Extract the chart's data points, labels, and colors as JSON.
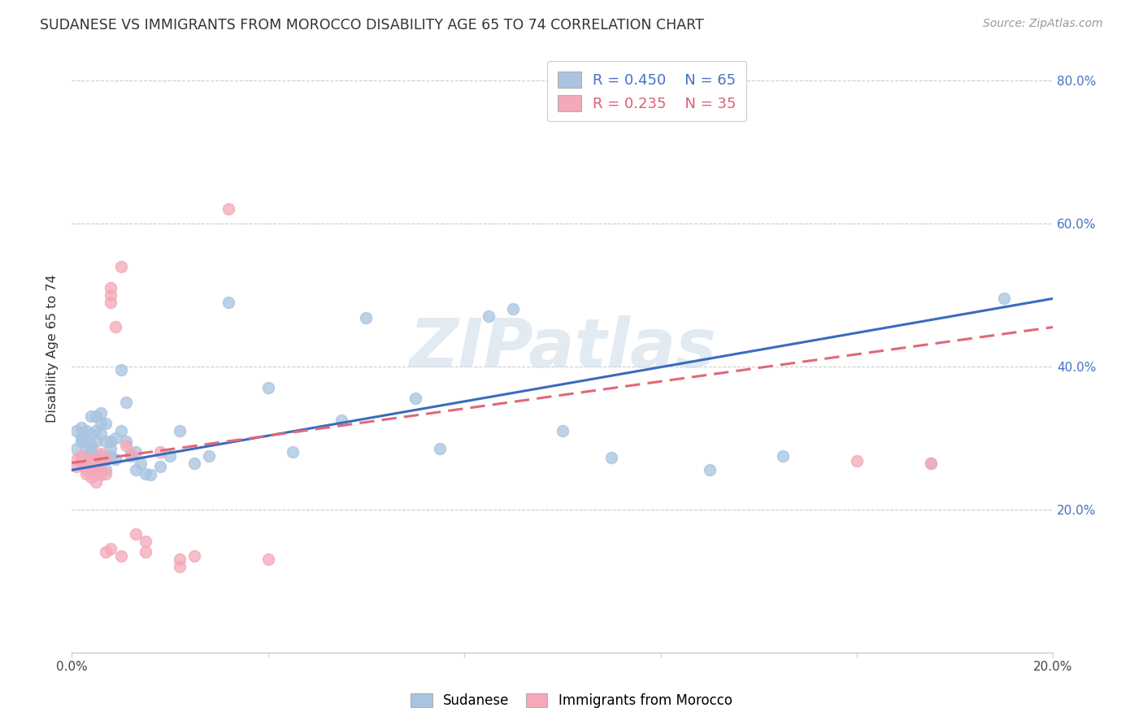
{
  "title": "SUDANESE VS IMMIGRANTS FROM MOROCCO DISABILITY AGE 65 TO 74 CORRELATION CHART",
  "source": "Source: ZipAtlas.com",
  "ylabel": "Disability Age 65 to 74",
  "xlim": [
    0.0,
    0.2
  ],
  "ylim": [
    0.0,
    0.85
  ],
  "x_ticks": [
    0.0,
    0.04,
    0.08,
    0.12,
    0.16,
    0.2
  ],
  "x_tick_labels": [
    "0.0%",
    "",
    "",
    "",
    "",
    "20.0%"
  ],
  "y_ticks": [
    0.0,
    0.2,
    0.4,
    0.6,
    0.8
  ],
  "y_tick_labels_right": [
    "",
    "20.0%",
    "40.0%",
    "60.0%",
    "80.0%"
  ],
  "blue_color": "#a8c4e0",
  "pink_color": "#f4a8b8",
  "blue_line_color": "#3a6bbf",
  "pink_line_color": "#e06878",
  "legend_blue_R": "R = 0.450",
  "legend_blue_N": "N = 65",
  "legend_pink_R": "R = 0.235",
  "legend_pink_N": "N = 35",
  "series1_label": "Sudanese",
  "series2_label": "Immigrants from Morocco",
  "watermark": "ZIPatlas",
  "blue_x": [
    0.001,
    0.001,
    0.002,
    0.002,
    0.002,
    0.002,
    0.003,
    0.003,
    0.003,
    0.003,
    0.003,
    0.004,
    0.004,
    0.004,
    0.004,
    0.004,
    0.004,
    0.005,
    0.005,
    0.005,
    0.005,
    0.005,
    0.006,
    0.006,
    0.006,
    0.006,
    0.007,
    0.007,
    0.007,
    0.007,
    0.008,
    0.008,
    0.008,
    0.009,
    0.009,
    0.01,
    0.01,
    0.011,
    0.011,
    0.012,
    0.013,
    0.013,
    0.014,
    0.015,
    0.016,
    0.018,
    0.02,
    0.022,
    0.025,
    0.028,
    0.032,
    0.04,
    0.045,
    0.055,
    0.06,
    0.07,
    0.075,
    0.085,
    0.09,
    0.1,
    0.11,
    0.13,
    0.145,
    0.175,
    0.19
  ],
  "blue_y": [
    0.285,
    0.31,
    0.3,
    0.295,
    0.315,
    0.27,
    0.285,
    0.31,
    0.295,
    0.275,
    0.26,
    0.33,
    0.305,
    0.29,
    0.275,
    0.265,
    0.285,
    0.31,
    0.33,
    0.295,
    0.275,
    0.26,
    0.335,
    0.32,
    0.305,
    0.275,
    0.32,
    0.295,
    0.27,
    0.255,
    0.285,
    0.295,
    0.275,
    0.3,
    0.27,
    0.395,
    0.31,
    0.35,
    0.295,
    0.275,
    0.28,
    0.255,
    0.265,
    0.25,
    0.248,
    0.26,
    0.275,
    0.31,
    0.265,
    0.275,
    0.49,
    0.37,
    0.28,
    0.325,
    0.468,
    0.355,
    0.285,
    0.47,
    0.48,
    0.31,
    0.272,
    0.255,
    0.275,
    0.265,
    0.495
  ],
  "pink_x": [
    0.001,
    0.001,
    0.002,
    0.002,
    0.003,
    0.003,
    0.003,
    0.004,
    0.004,
    0.004,
    0.004,
    0.005,
    0.005,
    0.005,
    0.005,
    0.006,
    0.006,
    0.006,
    0.006,
    0.007,
    0.007,
    0.008,
    0.008,
    0.008,
    0.009,
    0.01,
    0.011,
    0.012,
    0.013,
    0.015,
    0.018,
    0.022,
    0.032,
    0.16,
    0.175
  ],
  "pink_y": [
    0.27,
    0.26,
    0.275,
    0.265,
    0.265,
    0.255,
    0.25,
    0.26,
    0.27,
    0.258,
    0.245,
    0.27,
    0.26,
    0.25,
    0.238,
    0.255,
    0.278,
    0.265,
    0.248,
    0.27,
    0.25,
    0.51,
    0.5,
    0.49,
    0.455,
    0.54,
    0.29,
    0.278,
    0.165,
    0.14,
    0.28,
    0.13,
    0.62,
    0.268,
    0.265
  ],
  "pink_extra_low_x": [
    0.007,
    0.008,
    0.01,
    0.015,
    0.022,
    0.025,
    0.04
  ],
  "pink_extra_low_y": [
    0.14,
    0.145,
    0.135,
    0.155,
    0.12,
    0.135,
    0.13
  ],
  "blue_trendline_x": [
    0.0,
    0.2
  ],
  "blue_trendline_y": [
    0.255,
    0.495
  ],
  "pink_trendline_x": [
    0.0,
    0.2
  ],
  "pink_trendline_y": [
    0.265,
    0.455
  ]
}
